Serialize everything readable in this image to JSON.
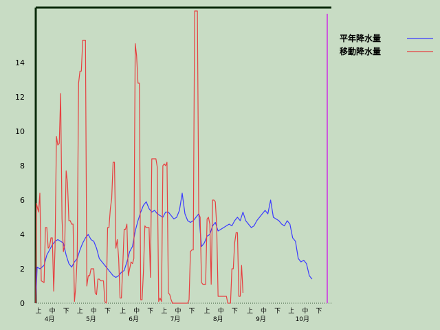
{
  "chart_data": {
    "type": "line",
    "title": "",
    "xlabel": "",
    "ylabel": "",
    "ylim": [
      0,
      17
    ],
    "yticks": [
      0,
      2,
      4,
      6,
      8,
      10,
      12,
      14
    ],
    "grid": false,
    "legend_position": "top-right",
    "x_unit": "day index (Apr 1 = 0)",
    "x_range": [
      0,
      214
    ],
    "months": [
      {
        "label": "4月",
        "x": 10
      },
      {
        "label": "5月",
        "x": 40
      },
      {
        "label": "6月",
        "x": 71
      },
      {
        "label": "7月",
        "x": 101
      },
      {
        "label": "8月",
        "x": 132
      },
      {
        "label": "9月",
        "x": 163
      },
      {
        "label": "10月",
        "x": 193
      }
    ],
    "subticks": [
      {
        "label": "上",
        "x": 2
      },
      {
        "label": "中",
        "x": 12
      },
      {
        "label": "下",
        "x": 22
      },
      {
        "label": "上",
        "x": 32
      },
      {
        "label": "中",
        "x": 42
      },
      {
        "label": "下",
        "x": 52
      },
      {
        "label": "上",
        "x": 63
      },
      {
        "label": "中",
        "x": 73
      },
      {
        "label": "下",
        "x": 83
      },
      {
        "label": "上",
        "x": 93
      },
      {
        "label": "中",
        "x": 103
      },
      {
        "label": "下",
        "x": 113
      },
      {
        "label": "上",
        "x": 124
      },
      {
        "label": "中",
        "x": 134
      },
      {
        "label": "下",
        "x": 144
      },
      {
        "label": "上",
        "x": 155
      },
      {
        "label": "中",
        "x": 165
      },
      {
        "label": "下",
        "x": 175
      },
      {
        "label": "上",
        "x": 185
      },
      {
        "label": "中",
        "x": 195
      },
      {
        "label": "下",
        "x": 205
      }
    ],
    "current_marker_x": 211,
    "series": [
      {
        "name": "平年降水量",
        "color": "#3a3aff",
        "points": [
          [
            0,
            0
          ],
          [
            1,
            2.1
          ],
          [
            3,
            2.0
          ],
          [
            6,
            2.2
          ],
          [
            8,
            2.8
          ],
          [
            10,
            3.1
          ],
          [
            12,
            3.4
          ],
          [
            14,
            3.6
          ],
          [
            16,
            3.7
          ],
          [
            18,
            3.6
          ],
          [
            20,
            3.5
          ],
          [
            22,
            2.8
          ],
          [
            24,
            2.3
          ],
          [
            26,
            2.1
          ],
          [
            28,
            2.4
          ],
          [
            30,
            2.6
          ],
          [
            32,
            3.1
          ],
          [
            34,
            3.5
          ],
          [
            36,
            3.8
          ],
          [
            38,
            4.0
          ],
          [
            40,
            3.7
          ],
          [
            42,
            3.6
          ],
          [
            44,
            3.2
          ],
          [
            46,
            2.6
          ],
          [
            48,
            2.4
          ],
          [
            50,
            2.2
          ],
          [
            52,
            2.0
          ],
          [
            54,
            1.8
          ],
          [
            56,
            1.6
          ],
          [
            58,
            1.5
          ],
          [
            60,
            1.6
          ],
          [
            62,
            1.8
          ],
          [
            64,
            1.9
          ],
          [
            66,
            2.4
          ],
          [
            68,
            3.0
          ],
          [
            70,
            3.3
          ],
          [
            72,
            4.2
          ],
          [
            74,
            4.8
          ],
          [
            76,
            5.3
          ],
          [
            78,
            5.7
          ],
          [
            80,
            5.9
          ],
          [
            82,
            5.5
          ],
          [
            84,
            5.3
          ],
          [
            86,
            5.4
          ],
          [
            88,
            5.2
          ],
          [
            90,
            5.1
          ],
          [
            92,
            5.0
          ],
          [
            94,
            5.3
          ],
          [
            96,
            5.3
          ],
          [
            98,
            5.1
          ],
          [
            100,
            4.9
          ],
          [
            102,
            5.0
          ],
          [
            104,
            5.4
          ],
          [
            106,
            6.4
          ],
          [
            108,
            5.2
          ],
          [
            110,
            4.8
          ],
          [
            112,
            4.7
          ],
          [
            114,
            4.8
          ],
          [
            116,
            5.0
          ],
          [
            118,
            5.2
          ],
          [
            120,
            3.3
          ],
          [
            122,
            3.5
          ],
          [
            124,
            3.9
          ],
          [
            126,
            4.0
          ],
          [
            128,
            4.5
          ],
          [
            130,
            4.7
          ],
          [
            132,
            4.2
          ],
          [
            134,
            4.3
          ],
          [
            136,
            4.4
          ],
          [
            138,
            4.5
          ],
          [
            140,
            4.6
          ],
          [
            142,
            4.5
          ],
          [
            144,
            4.8
          ],
          [
            146,
            5.0
          ],
          [
            148,
            4.8
          ],
          [
            150,
            5.3
          ],
          [
            152,
            4.8
          ],
          [
            154,
            4.6
          ],
          [
            156,
            4.4
          ],
          [
            158,
            4.5
          ],
          [
            160,
            4.8
          ],
          [
            162,
            5.0
          ],
          [
            164,
            5.2
          ],
          [
            166,
            5.4
          ],
          [
            168,
            5.2
          ],
          [
            170,
            6.0
          ],
          [
            172,
            5.0
          ],
          [
            174,
            4.9
          ],
          [
            176,
            4.8
          ],
          [
            178,
            4.6
          ],
          [
            180,
            4.5
          ],
          [
            182,
            4.8
          ],
          [
            184,
            4.6
          ],
          [
            186,
            3.8
          ],
          [
            188,
            3.6
          ],
          [
            190,
            2.6
          ],
          [
            192,
            2.4
          ],
          [
            194,
            2.5
          ],
          [
            196,
            2.3
          ],
          [
            198,
            1.6
          ],
          [
            200,
            1.4
          ]
        ]
      },
      {
        "name": "移動降水量",
        "color": "#e64040",
        "points": [
          [
            0,
            0
          ],
          [
            0.5,
            5.8
          ],
          [
            2,
            5.3
          ],
          [
            3,
            6.4
          ],
          [
            4,
            1.3
          ],
          [
            6,
            1.2
          ],
          [
            7,
            4.4
          ],
          [
            8,
            4.4
          ],
          [
            9,
            3.2
          ],
          [
            10,
            3.3
          ],
          [
            11,
            3.8
          ],
          [
            12,
            3.8
          ],
          [
            13,
            0.7
          ],
          [
            14,
            3.3
          ],
          [
            15,
            9.7
          ],
          [
            16,
            9.2
          ],
          [
            17,
            9.3
          ],
          [
            18,
            12.2
          ],
          [
            19,
            4.9
          ],
          [
            20,
            3.0
          ],
          [
            21,
            3.4
          ],
          [
            22,
            7.7
          ],
          [
            23,
            7.0
          ],
          [
            24,
            4.8
          ],
          [
            25,
            4.8
          ],
          [
            26,
            4.6
          ],
          [
            27,
            4.6
          ],
          [
            28,
            0.1
          ],
          [
            29,
            1.0
          ],
          [
            30,
            2.7
          ],
          [
            31,
            12.8
          ],
          [
            32,
            13.5
          ],
          [
            33,
            13.5
          ],
          [
            34,
            15.3
          ],
          [
            35,
            15.3
          ],
          [
            36,
            15.3
          ],
          [
            37,
            1.0
          ],
          [
            38,
            1.6
          ],
          [
            39,
            1.6
          ],
          [
            40,
            2.0
          ],
          [
            41,
            2.0
          ],
          [
            42,
            2.0
          ],
          [
            43,
            0.6
          ],
          [
            44,
            0.5
          ],
          [
            45,
            1.4
          ],
          [
            46,
            1.4
          ],
          [
            47,
            1.3
          ],
          [
            48,
            1.3
          ],
          [
            49,
            1.3
          ],
          [
            50,
            0.1
          ],
          [
            51,
            0.0
          ],
          [
            52,
            4.4
          ],
          [
            53,
            4.4
          ],
          [
            54,
            5.5
          ],
          [
            55,
            6.1
          ],
          [
            56,
            8.2
          ],
          [
            57,
            8.2
          ],
          [
            58,
            3.2
          ],
          [
            59,
            3.7
          ],
          [
            60,
            2.6
          ],
          [
            61,
            0.3
          ],
          [
            62,
            0.3
          ],
          [
            63,
            2.2
          ],
          [
            64,
            4.3
          ],
          [
            65,
            4.3
          ],
          [
            66,
            4.6
          ],
          [
            67,
            1.6
          ],
          [
            68,
            2.0
          ],
          [
            69,
            2.4
          ],
          [
            70,
            2.3
          ],
          [
            71,
            2.6
          ],
          [
            72,
            15.1
          ],
          [
            73,
            14.4
          ],
          [
            74,
            12.8
          ],
          [
            75,
            12.8
          ],
          [
            76,
            0.2
          ],
          [
            77,
            0.2
          ],
          [
            78,
            1.9
          ],
          [
            79,
            4.5
          ],
          [
            80,
            4.4
          ],
          [
            81,
            4.4
          ],
          [
            82,
            4.4
          ],
          [
            83,
            1.5
          ],
          [
            84,
            8.4
          ],
          [
            85,
            8.4
          ],
          [
            86,
            8.4
          ],
          [
            87,
            8.4
          ],
          [
            88,
            7.9
          ],
          [
            89,
            0.1
          ],
          [
            90,
            0.3
          ],
          [
            91,
            0.1
          ],
          [
            92,
            8.0
          ],
          [
            93,
            8.1
          ],
          [
            94,
            8.0
          ],
          [
            95,
            8.2
          ],
          [
            96,
            0.6
          ],
          [
            97,
            0.5
          ],
          [
            98,
            0.2
          ],
          [
            99,
            0.0
          ],
          [
            100,
            0.0
          ],
          [
            104,
            0.0
          ],
          [
            108,
            0.0
          ],
          [
            110,
            0.0
          ],
          [
            111,
            0.2
          ],
          [
            112,
            3.0
          ],
          [
            113,
            3.1
          ],
          [
            114,
            3.1
          ],
          [
            115,
            17.0
          ],
          [
            117,
            17.0
          ],
          [
            118,
            5.2
          ],
          [
            119,
            5.0
          ],
          [
            120,
            1.2
          ],
          [
            121,
            1.1
          ],
          [
            122,
            1.1
          ],
          [
            123,
            1.1
          ],
          [
            124,
            4.9
          ],
          [
            125,
            5.0
          ],
          [
            126,
            4.6
          ],
          [
            127,
            1.1
          ],
          [
            128,
            6.0
          ],
          [
            129,
            6.0
          ],
          [
            130,
            5.9
          ],
          [
            131,
            4.5
          ],
          [
            132,
            0.4
          ],
          [
            134,
            0.4
          ],
          [
            136,
            0.4
          ],
          [
            138,
            0.4
          ],
          [
            139,
            0.0
          ],
          [
            141,
            0.0
          ],
          [
            142,
            2.0
          ],
          [
            143,
            2.0
          ],
          [
            144,
            3.5
          ],
          [
            145,
            4.1
          ],
          [
            146,
            4.1
          ],
          [
            147,
            0.4
          ],
          [
            148,
            0.4
          ],
          [
            149,
            2.2
          ],
          [
            150,
            0.6
          ]
        ]
      }
    ]
  }
}
